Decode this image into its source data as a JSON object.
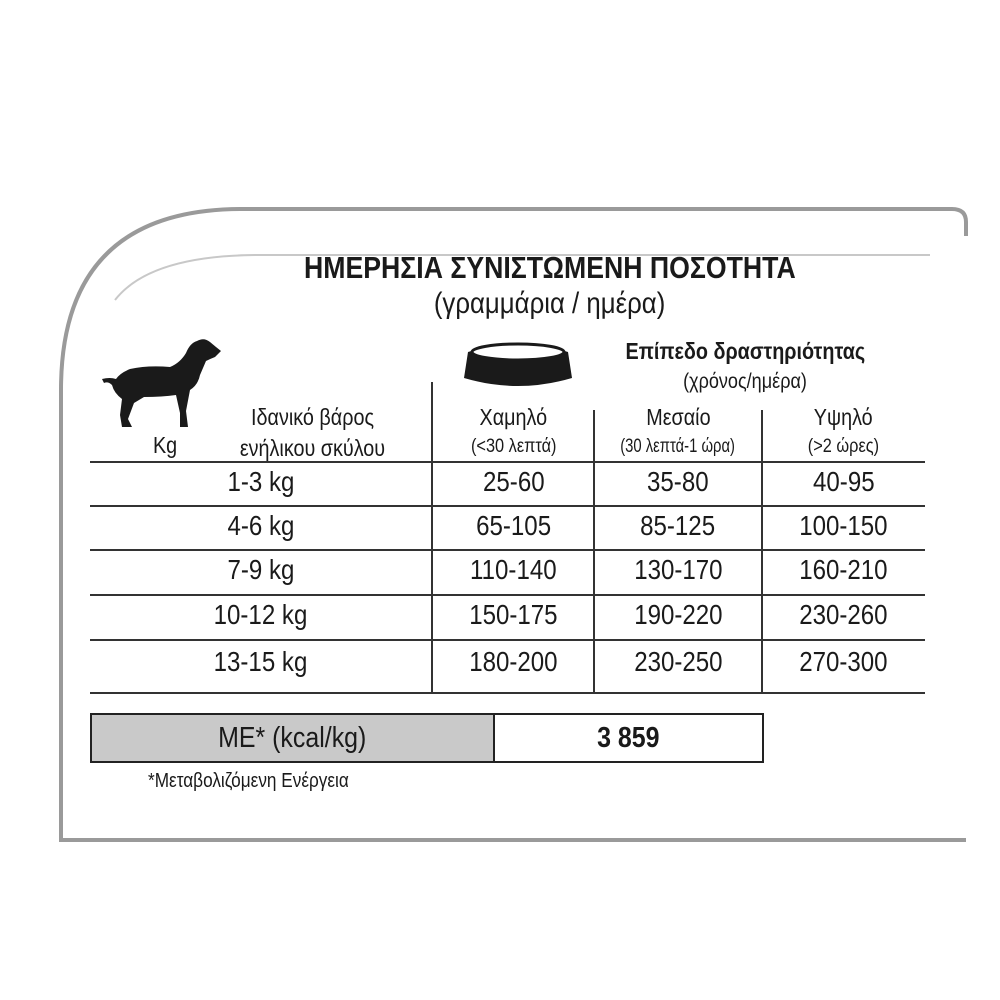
{
  "title": "ΗΜΕΡΗΣΙΑ ΣΥΝΙΣΤΩΜΕΝΗ ΠΟΣΟΤΗΤΑ",
  "subtitle": "(γραμμάρια / ημέρα)",
  "activity": {
    "label": "Επίπεδο δραστηριότητας",
    "unit": "(χρόνος/ημέρα)"
  },
  "weight_header": {
    "unit": "Kg",
    "line1": "Ιδανικό βάρος",
    "line2": "ενήλικου σκύλου"
  },
  "columns": [
    {
      "name": "Χαμηλό",
      "range": "(<30 λεπτά)"
    },
    {
      "name": "Μεσαίο",
      "range": "(30 λεπτά-1 ώρα)"
    },
    {
      "name": "Υψηλό",
      "range": "(>2 ώρες)"
    }
  ],
  "rows": [
    {
      "weight": "1-3 kg",
      "values": [
        "25-60",
        "35-80",
        "40-95"
      ]
    },
    {
      "weight": "4-6 kg",
      "values": [
        "65-105",
        "85-125",
        "100-150"
      ]
    },
    {
      "weight": "7-9 kg",
      "values": [
        "110-140",
        "130-170",
        "160-210"
      ]
    },
    {
      "weight": "10-12 kg",
      "values": [
        "150-175",
        "190-220",
        "230-260"
      ]
    },
    {
      "weight": "13-15 kg",
      "values": [
        "180-200",
        "230-250",
        "270-300"
      ]
    }
  ],
  "energy": {
    "label": "ME* (kcal/kg)",
    "value": "3 859"
  },
  "footnote": "*Μεταβολιζόμενη Ενέργεια",
  "icons": {
    "dog": "dog-silhouette-icon",
    "bowl": "food-bowl-icon"
  },
  "colors": {
    "frame": "#9a9a9a",
    "inner_arc": "#c8c8c8",
    "energy_label_bg": "#c9c9c9"
  }
}
